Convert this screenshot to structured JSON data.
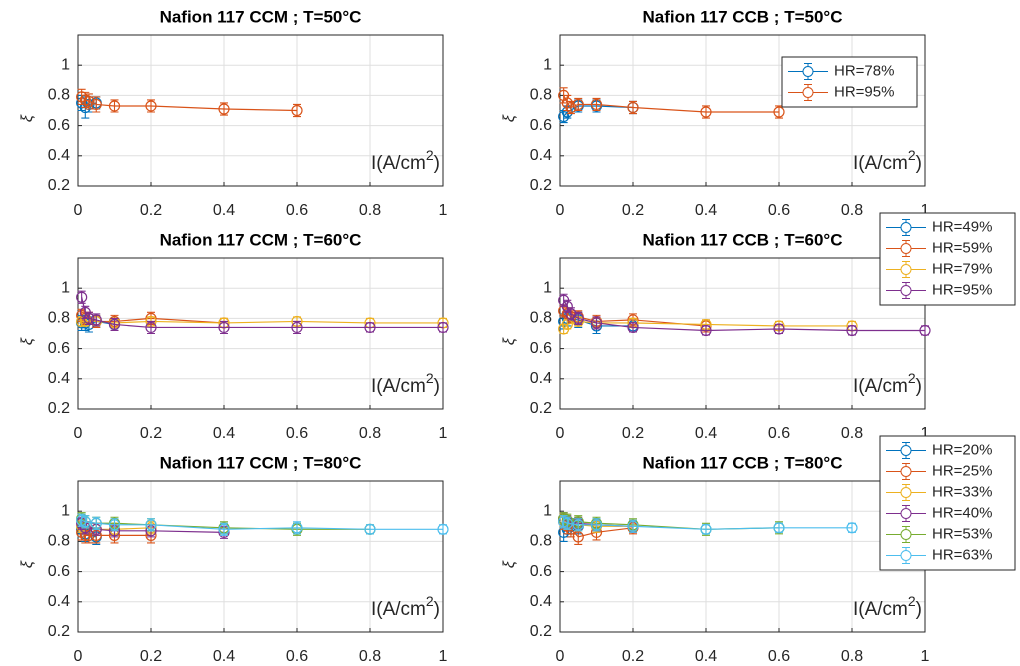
{
  "chart_data": [
    {
      "type": "line",
      "title": "Nafion 117 CCM ; T=50°C",
      "ylabel": "ξ",
      "annotation": [
        "I(A/cm",
        "2",
        ")"
      ],
      "xlim": [
        0,
        1
      ],
      "ylim": [
        0.2,
        1.2
      ],
      "xticks": [
        0,
        0.2,
        0.4,
        0.6,
        0.8,
        1
      ],
      "yticks": [
        0.2,
        0.4,
        0.6,
        0.8,
        1
      ],
      "grid": true,
      "series": [
        {
          "color": "#0072BD",
          "x": [
            0.01,
            0.02,
            0.03,
            0.05
          ],
          "values": [
            0.75,
            0.72,
            0.74,
            0.75
          ],
          "errors": [
            0.05,
            0.07,
            0.05,
            0.04
          ]
        },
        {
          "color": "#D95319",
          "x": [
            0.01,
            0.02,
            0.03,
            0.05,
            0.1,
            0.2,
            0.4,
            0.6
          ],
          "values": [
            0.79,
            0.77,
            0.76,
            0.74,
            0.73,
            0.73,
            0.71,
            0.7
          ],
          "errors": [
            0.05,
            0.05,
            0.05,
            0.05,
            0.04,
            0.04,
            0.04,
            0.04
          ]
        }
      ]
    },
    {
      "type": "line",
      "title": "Nafion 117 CCB ; T=50°C",
      "ylabel": "ξ",
      "annotation": [
        "I(A/cm",
        "2",
        ")"
      ],
      "xlim": [
        0,
        1
      ],
      "ylim": [
        0.2,
        1.2
      ],
      "xticks": [
        0,
        0.2,
        0.4,
        0.6,
        0.8,
        1
      ],
      "yticks": [
        0.2,
        0.4,
        0.6,
        0.8,
        1
      ],
      "grid": true,
      "legend": "northeast",
      "series": [
        {
          "name": "HR=78%",
          "color": "#0072BD",
          "x": [
            0.01,
            0.02,
            0.05,
            0.1,
            0.2
          ],
          "values": [
            0.66,
            0.69,
            0.73,
            0.73,
            0.72
          ],
          "errors": [
            0.04,
            0.04,
            0.04,
            0.04,
            0.04
          ]
        },
        {
          "name": "HR=95%",
          "color": "#D95319",
          "x": [
            0.01,
            0.02,
            0.03,
            0.05,
            0.1,
            0.2,
            0.4,
            0.6
          ],
          "values": [
            0.8,
            0.75,
            0.72,
            0.74,
            0.74,
            0.72,
            0.69,
            0.69
          ],
          "errors": [
            0.05,
            0.05,
            0.04,
            0.04,
            0.04,
            0.04,
            0.04,
            0.04
          ]
        }
      ]
    },
    {
      "type": "line",
      "title": "Nafion 117 CCM ; T=60°C",
      "ylabel": "ξ",
      "annotation": [
        "I(A/cm",
        "2",
        ")"
      ],
      "xlim": [
        0,
        1
      ],
      "ylim": [
        0.2,
        1.2
      ],
      "xticks": [
        0,
        0.2,
        0.4,
        0.6,
        0.8,
        1
      ],
      "yticks": [
        0.2,
        0.4,
        0.6,
        0.8,
        1
      ],
      "grid": true,
      "series": [
        {
          "color": "#0072BD",
          "x": [
            0.01,
            0.02,
            0.03,
            0.05,
            0.1
          ],
          "values": [
            0.77,
            0.77,
            0.76,
            0.78,
            0.76
          ],
          "errors": [
            0.05,
            0.05,
            0.05,
            0.04,
            0.04
          ]
        },
        {
          "color": "#D95319",
          "x": [
            0.01,
            0.02,
            0.03,
            0.05,
            0.1,
            0.2,
            0.4
          ],
          "values": [
            0.82,
            0.8,
            0.8,
            0.78,
            0.78,
            0.8,
            0.77
          ],
          "errors": [
            0.04,
            0.04,
            0.04,
            0.04,
            0.04,
            0.04,
            0.03
          ]
        },
        {
          "color": "#EDB120",
          "x": [
            0.01,
            0.02,
            0.05,
            0.1,
            0.2,
            0.4,
            0.6,
            0.8,
            1
          ],
          "values": [
            0.78,
            0.78,
            0.78,
            0.77,
            0.78,
            0.77,
            0.78,
            0.77,
            0.77
          ],
          "errors": [
            0.03,
            0.03,
            0.03,
            0.03,
            0.03,
            0.03,
            0.03,
            0.03,
            0.03
          ]
        },
        {
          "color": "#7E2F8E",
          "x": [
            0.01,
            0.02,
            0.03,
            0.05,
            0.1,
            0.2,
            0.4,
            0.6,
            0.8,
            1
          ],
          "values": [
            0.94,
            0.84,
            0.8,
            0.79,
            0.76,
            0.74,
            0.74,
            0.74,
            0.74,
            0.74
          ],
          "errors": [
            0.04,
            0.04,
            0.04,
            0.04,
            0.04,
            0.04,
            0.04,
            0.04,
            0.03,
            0.03
          ]
        }
      ]
    },
    {
      "type": "line",
      "title": "Nafion 117 CCB ; T=60°C",
      "ylabel": "ξ",
      "annotation": [
        "I(A/cm",
        "2",
        ")"
      ],
      "xlim": [
        0,
        1
      ],
      "ylim": [
        0.2,
        1.2
      ],
      "xticks": [
        0,
        0.2,
        0.4,
        0.6,
        0.8,
        1
      ],
      "yticks": [
        0.2,
        0.4,
        0.6,
        0.8,
        1
      ],
      "grid": true,
      "legend": "northeastoutside",
      "series": [
        {
          "name": "HR=49%",
          "color": "#0072BD",
          "x": [
            0.01,
            0.02,
            0.05,
            0.1,
            0.2
          ],
          "values": [
            0.78,
            0.8,
            0.79,
            0.75,
            0.75
          ],
          "errors": [
            0.05,
            0.05,
            0.05,
            0.05,
            0.04
          ]
        },
        {
          "name": "HR=59%",
          "color": "#D95319",
          "x": [
            0.01,
            0.02,
            0.03,
            0.05,
            0.1,
            0.2,
            0.4
          ],
          "values": [
            0.85,
            0.83,
            0.81,
            0.81,
            0.78,
            0.79,
            0.75
          ],
          "errors": [
            0.04,
            0.04,
            0.04,
            0.04,
            0.04,
            0.04,
            0.04
          ]
        },
        {
          "name": "HR=79%",
          "color": "#EDB120",
          "x": [
            0.01,
            0.02,
            0.05,
            0.1,
            0.2,
            0.4,
            0.6,
            0.8
          ],
          "values": [
            0.73,
            0.76,
            0.78,
            0.77,
            0.77,
            0.76,
            0.75,
            0.75
          ],
          "errors": [
            0.03,
            0.03,
            0.03,
            0.03,
            0.03,
            0.03,
            0.03,
            0.03
          ]
        },
        {
          "name": "HR=95%",
          "color": "#7E2F8E",
          "x": [
            0.01,
            0.02,
            0.03,
            0.05,
            0.1,
            0.2,
            0.4,
            0.6,
            0.8,
            1
          ],
          "values": [
            0.92,
            0.88,
            0.83,
            0.8,
            0.77,
            0.74,
            0.72,
            0.73,
            0.72,
            0.72
          ],
          "errors": [
            0.04,
            0.04,
            0.04,
            0.04,
            0.04,
            0.03,
            0.03,
            0.03,
            0.03,
            0.03
          ]
        }
      ]
    },
    {
      "type": "line",
      "title": "Nafion 117 CCM ; T=80°C",
      "ylabel": "ξ",
      "annotation": [
        "I(A/cm",
        "2",
        ")"
      ],
      "xlim": [
        0,
        1
      ],
      "ylim": [
        0.2,
        1.2
      ],
      "xticks": [
        0,
        0.2,
        0.4,
        0.6,
        0.8,
        1
      ],
      "yticks": [
        0.2,
        0.4,
        0.6,
        0.8,
        1
      ],
      "grid": true,
      "series": [
        {
          "color": "#0072BD",
          "x": [
            0.01,
            0.02,
            0.03,
            0.05
          ],
          "values": [
            0.88,
            0.85,
            0.84,
            0.83
          ],
          "errors": [
            0.05,
            0.05,
            0.05,
            0.05
          ]
        },
        {
          "color": "#D95319",
          "x": [
            0.01,
            0.02,
            0.03,
            0.05,
            0.1,
            0.2
          ],
          "values": [
            0.86,
            0.84,
            0.84,
            0.84,
            0.84,
            0.84
          ],
          "errors": [
            0.05,
            0.05,
            0.05,
            0.05,
            0.05,
            0.05
          ]
        },
        {
          "color": "#EDB120",
          "x": [
            0.01,
            0.02,
            0.05,
            0.1,
            0.2
          ],
          "values": [
            0.9,
            0.89,
            0.88,
            0.88,
            0.89
          ],
          "errors": [
            0.04,
            0.04,
            0.04,
            0.04,
            0.04
          ]
        },
        {
          "color": "#7E2F8E",
          "x": [
            0.01,
            0.02,
            0.05,
            0.1,
            0.2,
            0.4
          ],
          "values": [
            0.92,
            0.89,
            0.88,
            0.87,
            0.87,
            0.86
          ],
          "errors": [
            0.04,
            0.04,
            0.04,
            0.04,
            0.04,
            0.04
          ]
        },
        {
          "color": "#77AC30",
          "x": [
            0.01,
            0.02,
            0.05,
            0.1,
            0.2,
            0.4,
            0.6,
            0.8
          ],
          "values": [
            0.95,
            0.93,
            0.92,
            0.92,
            0.91,
            0.89,
            0.88,
            0.88
          ],
          "errors": [
            0.04,
            0.04,
            0.04,
            0.04,
            0.04,
            0.04,
            0.04,
            0.03
          ]
        },
        {
          "color": "#4DBEEE",
          "x": [
            0.01,
            0.02,
            0.05,
            0.1,
            0.2,
            0.4,
            0.6,
            0.8,
            1
          ],
          "values": [
            0.94,
            0.93,
            0.92,
            0.91,
            0.91,
            0.88,
            0.89,
            0.88,
            0.88
          ],
          "errors": [
            0.04,
            0.04,
            0.04,
            0.04,
            0.04,
            0.04,
            0.04,
            0.03,
            0.03
          ]
        }
      ]
    },
    {
      "type": "line",
      "title": "Nafion 117 CCB ; T=80°C",
      "ylabel": "ξ",
      "annotation": [
        "I(A/cm",
        "2",
        ")"
      ],
      "xlim": [
        0,
        1
      ],
      "ylim": [
        0.2,
        1.2
      ],
      "xticks": [
        0,
        0.2,
        0.4,
        0.6,
        0.8,
        1
      ],
      "yticks": [
        0.2,
        0.4,
        0.6,
        0.8,
        1
      ],
      "grid": true,
      "legend": "northeastoutside",
      "series": [
        {
          "name": "HR=20%",
          "color": "#0072BD",
          "x": [
            0.01,
            0.02,
            0.03,
            0.05
          ],
          "values": [
            0.86,
            0.88,
            0.9,
            0.9
          ],
          "errors": [
            0.06,
            0.05,
            0.05,
            0.05
          ]
        },
        {
          "name": "HR=25%",
          "color": "#D95319",
          "x": [
            0.01,
            0.02,
            0.03,
            0.05,
            0.1,
            0.2
          ],
          "values": [
            0.93,
            0.9,
            0.88,
            0.83,
            0.86,
            0.89
          ],
          "errors": [
            0.05,
            0.05,
            0.05,
            0.05,
            0.05,
            0.04
          ]
        },
        {
          "name": "HR=33%",
          "color": "#EDB120",
          "x": [
            0.01,
            0.02,
            0.05,
            0.1,
            0.2
          ],
          "values": [
            0.94,
            0.92,
            0.91,
            0.9,
            0.9
          ],
          "errors": [
            0.04,
            0.04,
            0.04,
            0.04,
            0.04
          ]
        },
        {
          "name": "HR=40%",
          "color": "#7E2F8E",
          "x": [
            0.01,
            0.02,
            0.05,
            0.1,
            0.2
          ],
          "values": [
            0.95,
            0.93,
            0.92,
            0.91,
            0.9
          ],
          "errors": [
            0.04,
            0.04,
            0.04,
            0.04,
            0.04
          ]
        },
        {
          "name": "HR=53%",
          "color": "#77AC30",
          "x": [
            0.01,
            0.02,
            0.05,
            0.1,
            0.2,
            0.4,
            0.6
          ],
          "values": [
            0.95,
            0.94,
            0.93,
            0.92,
            0.91,
            0.88,
            0.89
          ],
          "errors": [
            0.04,
            0.04,
            0.04,
            0.04,
            0.04,
            0.04,
            0.04
          ]
        },
        {
          "name": "HR=63%",
          "color": "#4DBEEE",
          "x": [
            0.01,
            0.02,
            0.05,
            0.1,
            0.2,
            0.4,
            0.6,
            0.8
          ],
          "values": [
            0.93,
            0.92,
            0.91,
            0.91,
            0.9,
            0.88,
            0.89,
            0.89
          ],
          "errors": [
            0.04,
            0.04,
            0.04,
            0.04,
            0.04,
            0.03,
            0.03,
            0.03
          ]
        }
      ]
    }
  ]
}
